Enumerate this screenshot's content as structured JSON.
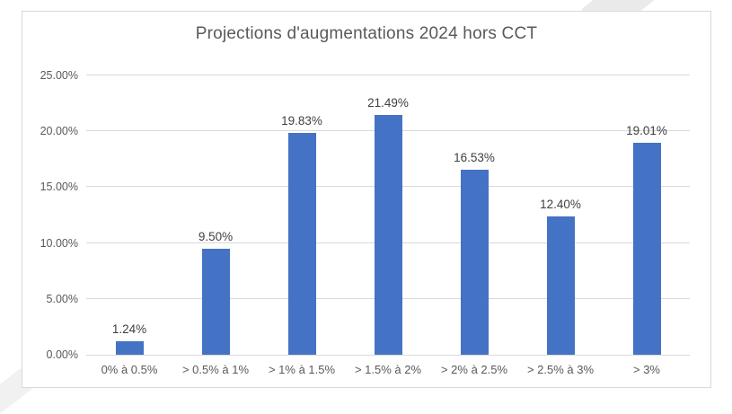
{
  "chart_data": {
    "type": "bar",
    "title": "Projections d'augmentations 2024 hors CCT",
    "categories": [
      "0% à 0.5%",
      "> 0.5% à 1%",
      "> 1% à 1.5%",
      "> 1.5% à 2%",
      "> 2% à 2.5%",
      "> 2.5% à 3%",
      "> 3%"
    ],
    "values": [
      1.24,
      9.5,
      19.83,
      21.49,
      16.53,
      12.4,
      19.01
    ],
    "value_labels": [
      "1.24%",
      "9.50%",
      "19.83%",
      "21.49%",
      "16.53%",
      "12.40%",
      "19.01%"
    ],
    "xlabel": "",
    "ylabel": "",
    "ylim": [
      0,
      25
    ],
    "ytick_interval": 5,
    "ytick_labels": [
      "0.00%",
      "5.00%",
      "10.00%",
      "15.00%",
      "20.00%",
      "25.00%"
    ],
    "grid": true,
    "legend": false,
    "colors": {
      "bar": "#4472C4",
      "gridline": "#D9D9D9",
      "title_text": "#595959",
      "axis_text": "#595959",
      "data_label_text": "#404040"
    }
  }
}
